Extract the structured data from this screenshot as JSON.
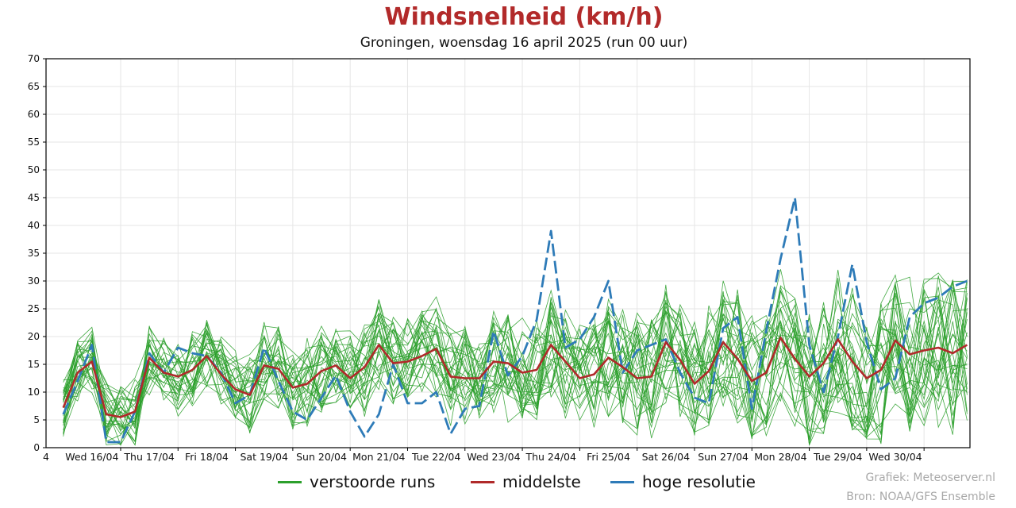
{
  "chart_data": {
    "type": "line",
    "title": "Windsnelheid (km/h)",
    "subtitle": "Groningen, woensdag 16 april 2025 (run 00 uur)",
    "ylim": [
      0,
      70
    ],
    "yticks": [
      0,
      5,
      10,
      15,
      20,
      25,
      30,
      35,
      40,
      45,
      50,
      55,
      60,
      65,
      70
    ],
    "x_start_label": "4",
    "day_labels": [
      "Wed 16/04",
      "Thu 17/04",
      "Fri 18/04",
      "Sat 19/04",
      "Sun 20/04",
      "Mon 21/04",
      "Tue 22/04",
      "Wed 23/04",
      "Thu 24/04",
      "Fri 25/04",
      "Sat 26/04",
      "Sun 27/04",
      "Mon 28/04",
      "Tue 29/04",
      "Wed 30/04"
    ],
    "x_range_days": [
      -0.3,
      15.8
    ],
    "grid": true,
    "colors": {
      "ensemble": "#2ca02c",
      "mean": "#b02a2a",
      "hires": "#2e7bb8",
      "title": "#b22a2a"
    },
    "series": [
      {
        "name": "middelste",
        "x": [
          0,
          0.25,
          0.5,
          0.75,
          1,
          1.25,
          1.5,
          1.75,
          2,
          2.25,
          2.5,
          2.75,
          3,
          3.25,
          3.5,
          3.75,
          4,
          4.25,
          4.5,
          4.75,
          5,
          5.25,
          5.5,
          5.75,
          6,
          6.25,
          6.5,
          6.75,
          7,
          7.25,
          7.5,
          7.75,
          8,
          8.25,
          8.5,
          8.75,
          9,
          9.25,
          9.5,
          9.75,
          10,
          10.25,
          10.5,
          10.75,
          11,
          11.25,
          11.5,
          11.75,
          12,
          12.25,
          12.5,
          12.75,
          13,
          13.25,
          13.5,
          13.75,
          14,
          14.25,
          14.5,
          14.75,
          15,
          15.25,
          15.5,
          15.75
        ],
        "values": [
          7.2,
          13.5,
          15.5,
          6.0,
          5.5,
          6.5,
          16.2,
          13.5,
          12.8,
          14.0,
          16.5,
          13.2,
          10.5,
          9.5,
          14.8,
          14.2,
          10.8,
          11.5,
          13.8,
          14.8,
          12.5,
          14.5,
          18.5,
          15.2,
          15.5,
          16.5,
          17.8,
          12.8,
          12.5,
          12.5,
          15.5,
          15.2,
          13.5,
          14.0,
          18.5,
          15.5,
          12.5,
          13.2,
          16.2,
          14.5,
          12.5,
          12.8,
          19.0,
          15.8,
          11.5,
          13.8,
          19.0,
          16.0,
          12.0,
          13.5,
          19.8,
          16.0,
          12.8,
          15.2,
          19.5,
          15.5,
          12.5,
          14.0,
          19.3,
          16.8,
          17.5,
          18.0,
          17.0,
          18.5
        ]
      },
      {
        "name": "hoge resolutie",
        "x": [
          0,
          0.25,
          0.5,
          0.75,
          1,
          1.25,
          1.5,
          1.75,
          2,
          2.25,
          2.5,
          2.75,
          3,
          3.25,
          3.5,
          3.75,
          4,
          4.25,
          4.5,
          4.75,
          5,
          5.25,
          5.5,
          5.75,
          6,
          6.25,
          6.5,
          6.75,
          7,
          7.25,
          7.5,
          7.75,
          8,
          8.25,
          8.5,
          8.75,
          9,
          9.25,
          9.5,
          9.75,
          10,
          10.25,
          10.5,
          10.75,
          11,
          11.25,
          11.5,
          11.75,
          12,
          12.25,
          12.5,
          12.75,
          13,
          13.25,
          13.5,
          13.75,
          14,
          14.25,
          14.5,
          14.75,
          15,
          15.25,
          15.5,
          15.75
        ],
        "values": [
          6.0,
          12.0,
          18.5,
          1.0,
          1.0,
          6.5,
          17.0,
          13.5,
          18.0,
          17.0,
          16.5,
          13.5,
          8.0,
          9.5,
          18.0,
          12.0,
          6.5,
          5.0,
          9.0,
          13.0,
          6.5,
          2.0,
          6.0,
          15.0,
          8.0,
          8.0,
          10.0,
          2.5,
          7.0,
          7.5,
          21.0,
          13.0,
          16.5,
          23.0,
          39.0,
          18.0,
          19.5,
          23.5,
          30.0,
          13.5,
          17.5,
          18.5,
          19.5,
          13.5,
          9.0,
          8.0,
          21.5,
          23.5,
          7.0,
          21.0,
          34.0,
          45.0,
          18.5,
          10.0,
          20.0,
          33.0,
          19.0,
          10.5,
          12.5,
          23.5,
          26.0,
          27.0,
          29.0,
          30.0
        ]
      }
    ],
    "ensemble_members": 30
  },
  "legend": {
    "ensemble_label": "verstoorde runs",
    "mean_label": "middelste",
    "hires_label": "hoge resolutie"
  },
  "credits": {
    "line1": "Grafiek: Meteoserver.nl",
    "line2": "Bron: NOAA/GFS Ensemble"
  }
}
